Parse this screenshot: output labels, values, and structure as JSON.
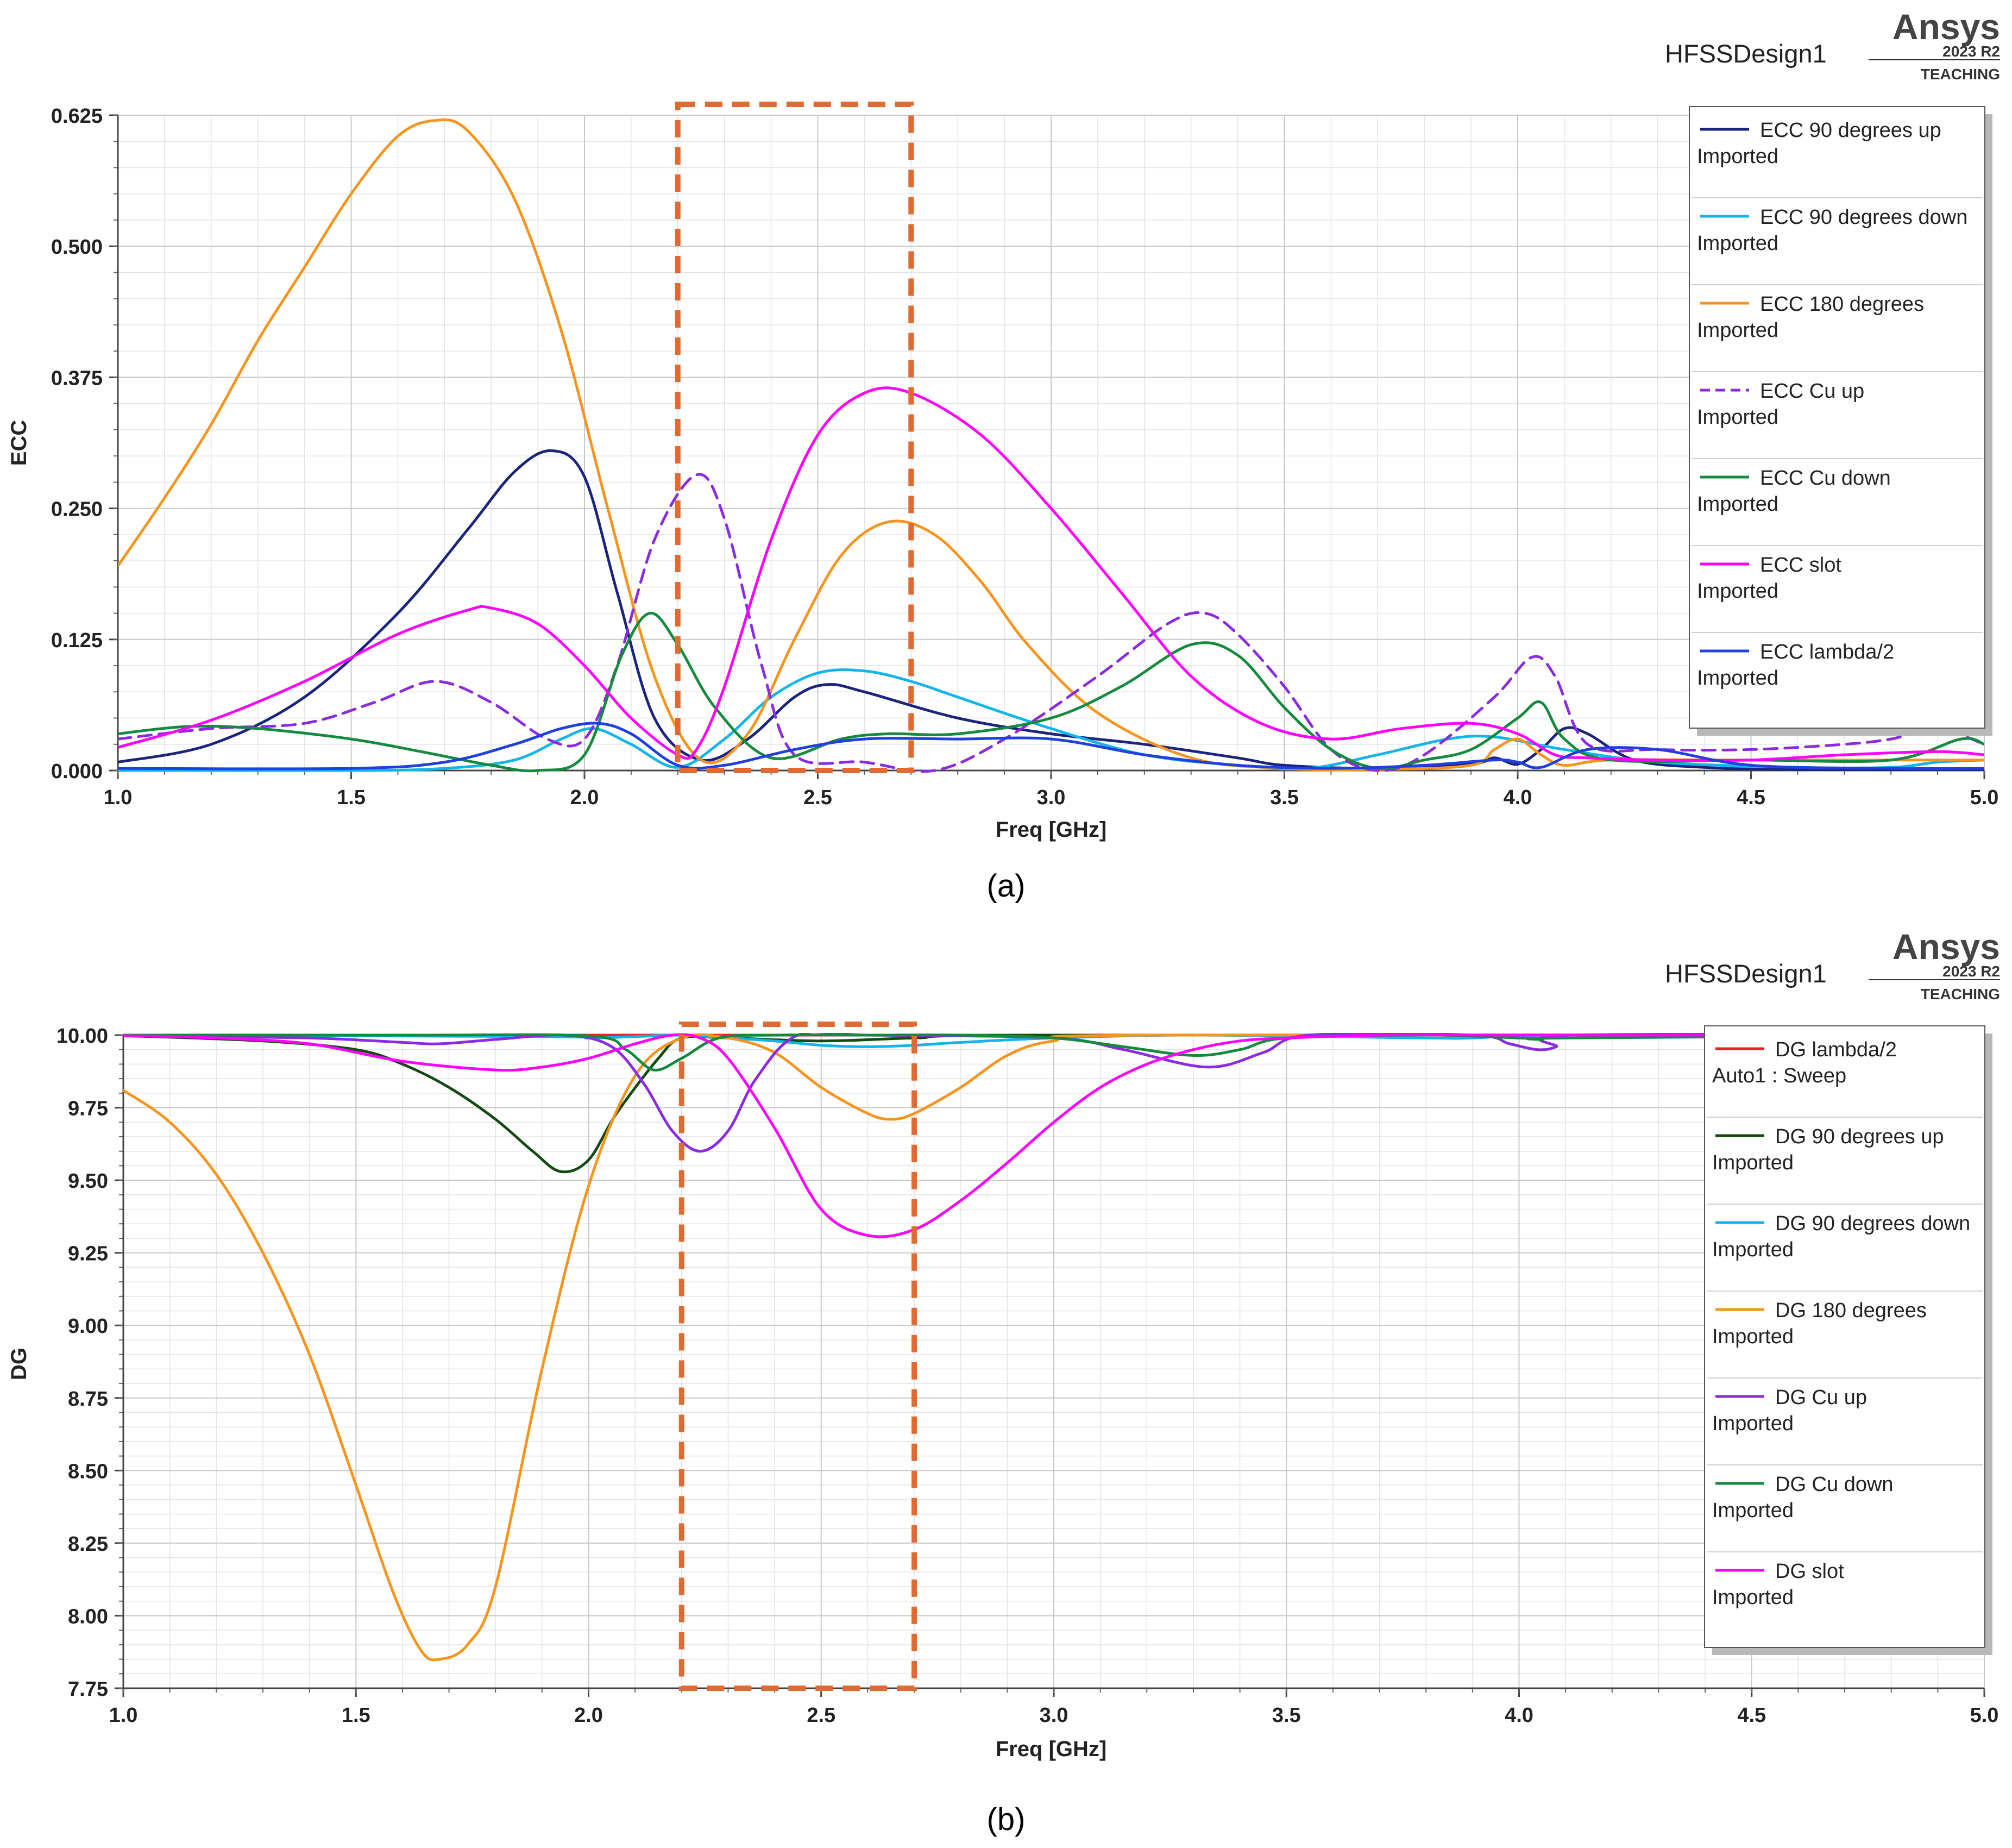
{
  "colors": {
    "navy": "#1a237e",
    "cyan": "#12b5ea",
    "orange": "#f7941d",
    "purple": "#8a2be2",
    "green": "#138a3c",
    "magenta": "#ff00ff",
    "blue": "#1f3fe0",
    "red": "#e8202a",
    "darkgreen": "#124a12",
    "highlight": "#e2692f"
  },
  "chart_data": [
    {
      "type": "line",
      "panel_label": "(a)",
      "design_name": "HFSSDesign1",
      "brand": "Ansys",
      "brand_version": "2023 R2",
      "brand_edition": "TEACHING",
      "xlabel": "Freq [GHz]",
      "ylabel": "ECC",
      "xlim": [
        1.0,
        5.0
      ],
      "ylim": [
        0.0,
        0.625
      ],
      "x_ticks": [
        "1.0",
        "1.5",
        "2.0",
        "2.5",
        "3.0",
        "3.5",
        "4.0",
        "4.5",
        "5.0"
      ],
      "y_ticks": [
        "0.000",
        "0.125",
        "0.250",
        "0.375",
        "0.500",
        "0.625"
      ],
      "highlight_band": [
        2.2,
        2.7
      ],
      "series": [
        {
          "name": "ECC 90 degrees  up",
          "source": "Imported",
          "color": "#1a237e",
          "dash": false,
          "x": [
            1.0,
            1.2,
            1.4,
            1.6,
            1.75,
            1.85,
            1.93,
            2.0,
            2.07,
            2.15,
            2.25,
            2.35,
            2.45,
            2.52,
            2.6,
            2.8,
            3.0,
            3.2,
            3.4,
            3.5,
            3.7,
            3.9,
            3.95,
            4.0,
            4.05,
            4.1,
            4.15,
            4.25,
            4.4,
            4.6,
            5.0
          ],
          "y": [
            0.008,
            0.025,
            0.07,
            0.15,
            0.23,
            0.285,
            0.305,
            0.28,
            0.17,
            0.05,
            0.01,
            0.03,
            0.07,
            0.082,
            0.075,
            0.05,
            0.035,
            0.025,
            0.012,
            0.005,
            0.002,
            0.006,
            0.012,
            0.006,
            0.02,
            0.04,
            0.035,
            0.01,
            0.003,
            0.001,
            0.001
          ]
        },
        {
          "name": "ECC 90 degrees down",
          "source": "Imported",
          "color": "#12b5ea",
          "dash": false,
          "x": [
            1.0,
            1.5,
            1.7,
            1.85,
            1.95,
            2.02,
            2.1,
            2.2,
            2.3,
            2.4,
            2.5,
            2.6,
            2.7,
            2.8,
            3.0,
            3.2,
            3.4,
            3.55,
            3.7,
            3.85,
            3.95,
            4.1,
            4.3,
            4.6,
            4.8,
            4.9,
            5.0
          ],
          "y": [
            0.0,
            0.0,
            0.002,
            0.01,
            0.03,
            0.04,
            0.025,
            0.003,
            0.03,
            0.07,
            0.093,
            0.095,
            0.085,
            0.07,
            0.04,
            0.015,
            0.005,
            0.002,
            0.015,
            0.03,
            0.032,
            0.02,
            0.008,
            0.003,
            0.003,
            0.008,
            0.01
          ]
        },
        {
          "name": "ECC 180 degrees",
          "source": "Imported",
          "color": "#f7941d",
          "dash": false,
          "x": [
            1.0,
            1.1,
            1.2,
            1.3,
            1.4,
            1.5,
            1.6,
            1.68,
            1.75,
            1.85,
            1.95,
            2.05,
            2.15,
            2.25,
            2.35,
            2.45,
            2.55,
            2.65,
            2.75,
            2.85,
            2.95,
            3.1,
            3.3,
            3.5,
            3.7,
            3.9,
            3.95,
            4.0,
            4.05,
            4.1,
            4.2,
            4.5,
            5.0
          ],
          "y": [
            0.195,
            0.26,
            0.33,
            0.41,
            0.48,
            0.55,
            0.605,
            0.62,
            0.61,
            0.545,
            0.42,
            0.25,
            0.09,
            0.01,
            0.035,
            0.125,
            0.205,
            0.237,
            0.225,
            0.18,
            0.12,
            0.055,
            0.012,
            0.002,
            0.001,
            0.005,
            0.02,
            0.03,
            0.015,
            0.005,
            0.01,
            0.01,
            0.01
          ]
        },
        {
          "name": "ECC Cu up",
          "source": "Imported",
          "color": "#8a2be2",
          "dash": true,
          "x": [
            1.0,
            1.2,
            1.4,
            1.55,
            1.68,
            1.8,
            1.92,
            2.0,
            2.07,
            2.15,
            2.24,
            2.3,
            2.38,
            2.45,
            2.6,
            2.75,
            2.9,
            3.1,
            3.25,
            3.33,
            3.4,
            3.5,
            3.6,
            3.7,
            3.8,
            3.95,
            4.03,
            4.08,
            4.15,
            4.3,
            4.5,
            4.7,
            4.8,
            4.9,
            5.0
          ],
          "y": [
            0.03,
            0.04,
            0.045,
            0.065,
            0.085,
            0.065,
            0.03,
            0.03,
            0.1,
            0.22,
            0.282,
            0.24,
            0.1,
            0.015,
            0.008,
            0.0,
            0.03,
            0.09,
            0.14,
            0.15,
            0.13,
            0.08,
            0.02,
            0.0,
            0.015,
            0.07,
            0.108,
            0.09,
            0.025,
            0.02,
            0.02,
            0.025,
            0.03,
            0.04,
            0.025
          ]
        },
        {
          "name": "ECC Cu down",
          "source": "Imported",
          "color": "#138a3c",
          "dash": false,
          "x": [
            1.0,
            1.15,
            1.3,
            1.5,
            1.65,
            1.8,
            1.9,
            2.0,
            2.08,
            2.14,
            2.2,
            2.28,
            2.4,
            2.55,
            2.65,
            2.8,
            3.0,
            3.15,
            3.3,
            3.4,
            3.5,
            3.6,
            3.7,
            3.8,
            3.9,
            4.0,
            4.05,
            4.1,
            4.2,
            4.5,
            4.8,
            4.95,
            5.0
          ],
          "y": [
            0.035,
            0.042,
            0.04,
            0.03,
            0.018,
            0.005,
            0.0,
            0.015,
            0.11,
            0.15,
            0.12,
            0.06,
            0.012,
            0.03,
            0.035,
            0.035,
            0.05,
            0.08,
            0.12,
            0.11,
            0.06,
            0.02,
            0.002,
            0.01,
            0.02,
            0.05,
            0.065,
            0.03,
            0.01,
            0.01,
            0.01,
            0.03,
            0.025
          ]
        },
        {
          "name": "ECC slot",
          "source": "Imported",
          "color": "#ff00ff",
          "dash": false,
          "x": [
            1.0,
            1.2,
            1.4,
            1.6,
            1.75,
            1.8,
            1.9,
            2.0,
            2.1,
            2.2,
            2.24,
            2.3,
            2.4,
            2.5,
            2.6,
            2.7,
            2.85,
            3.0,
            3.15,
            3.3,
            3.45,
            3.6,
            3.75,
            3.9,
            4.0,
            4.08,
            4.15,
            4.3,
            4.5,
            4.7,
            4.9,
            5.0
          ],
          "y": [
            0.022,
            0.048,
            0.085,
            0.13,
            0.153,
            0.155,
            0.14,
            0.1,
            0.05,
            0.015,
            0.02,
            0.08,
            0.22,
            0.32,
            0.36,
            0.36,
            0.32,
            0.25,
            0.17,
            0.09,
            0.045,
            0.03,
            0.04,
            0.045,
            0.035,
            0.015,
            0.012,
            0.01,
            0.01,
            0.015,
            0.018,
            0.015
          ]
        },
        {
          "name": "ECC lambda/2",
          "source": "Imported",
          "color": "#1f3fe0",
          "dash": false,
          "x": [
            1.0,
            1.5,
            1.7,
            1.85,
            1.95,
            2.03,
            2.1,
            2.2,
            2.3,
            2.45,
            2.6,
            2.8,
            3.0,
            3.2,
            3.4,
            3.6,
            3.8,
            3.95,
            4.0,
            4.05,
            4.15,
            4.3,
            4.5,
            4.8,
            5.0
          ],
          "y": [
            0.002,
            0.002,
            0.008,
            0.025,
            0.04,
            0.045,
            0.035,
            0.005,
            0.005,
            0.02,
            0.03,
            0.03,
            0.03,
            0.015,
            0.005,
            0.002,
            0.005,
            0.01,
            0.008,
            0.003,
            0.02,
            0.02,
            0.005,
            0.002,
            0.002
          ]
        }
      ]
    },
    {
      "type": "line",
      "panel_label": "(b)",
      "design_name": "HFSSDesign1",
      "brand": "Ansys",
      "brand_version": "2023 R2",
      "brand_edition": "TEACHING",
      "xlabel": "Freq [GHz]",
      "ylabel": "DG",
      "xlim": [
        1.0,
        5.0
      ],
      "ylim": [
        7.75,
        10.0
      ],
      "x_ticks": [
        "1.0",
        "1.5",
        "2.0",
        "2.5",
        "3.0",
        "3.5",
        "4.0",
        "4.5",
        "5.0"
      ],
      "y_ticks": [
        "7.75",
        "8.00",
        "8.25",
        "8.50",
        "8.75",
        "9.00",
        "9.25",
        "9.50",
        "9.75",
        "10.00"
      ],
      "highlight_band": [
        2.2,
        2.7
      ],
      "series": [
        {
          "name": "DG lambda/2",
          "source": "Auto1 : Sweep",
          "color": "#e8202a",
          "dash": false,
          "x": [
            1.0,
            5.0
          ],
          "y": [
            10.0,
            10.0
          ]
        },
        {
          "name": "DG 90 degrees up",
          "source": "Imported",
          "color": "#124a12",
          "dash": false,
          "x": [
            1.0,
            1.3,
            1.5,
            1.6,
            1.7,
            1.8,
            1.88,
            1.94,
            2.0,
            2.06,
            2.15,
            2.2,
            2.3,
            2.5,
            2.7,
            3.0,
            5.0
          ],
          "y": [
            9.998,
            9.98,
            9.95,
            9.9,
            9.82,
            9.71,
            9.6,
            9.53,
            9.57,
            9.73,
            9.92,
            9.99,
            9.99,
            9.98,
            9.99,
            10.0,
            10.0
          ]
        },
        {
          "name": "DG 90 degrees down",
          "source": "Imported",
          "color": "#12b5ea",
          "dash": false,
          "x": [
            1.0,
            1.9,
            2.0,
            2.1,
            2.2,
            2.3,
            2.4,
            2.5,
            2.6,
            2.7,
            2.8,
            3.0,
            3.3,
            3.8,
            3.9,
            4.1,
            5.0
          ],
          "y": [
            10.0,
            9.995,
            9.99,
            9.995,
            10.0,
            9.99,
            9.98,
            9.965,
            9.96,
            9.965,
            9.975,
            9.99,
            10.0,
            9.99,
            9.99,
            10.0,
            10.0
          ]
        },
        {
          "name": "DG 180 degrees",
          "source": "Imported",
          "color": "#f7941d",
          "dash": false,
          "x": [
            1.0,
            1.1,
            1.2,
            1.3,
            1.4,
            1.5,
            1.58,
            1.64,
            1.68,
            1.74,
            1.8,
            1.9,
            2.0,
            2.1,
            2.2,
            2.3,
            2.4,
            2.5,
            2.6,
            2.65,
            2.7,
            2.8,
            2.9,
            3.0,
            3.2,
            5.0
          ],
          "y": [
            9.81,
            9.7,
            9.52,
            9.25,
            8.9,
            8.45,
            8.08,
            7.88,
            7.85,
            7.9,
            8.1,
            8.85,
            9.48,
            9.86,
            9.99,
            9.99,
            9.94,
            9.82,
            9.73,
            9.71,
            9.73,
            9.82,
            9.93,
            9.98,
            10.0,
            10.0
          ]
        },
        {
          "name": "DG Cu up",
          "source": "Imported",
          "color": "#8a2be2",
          "dash": false,
          "x": [
            1.0,
            1.4,
            1.6,
            1.68,
            1.8,
            1.95,
            2.05,
            2.12,
            2.18,
            2.24,
            2.3,
            2.36,
            2.45,
            2.6,
            3.0,
            3.15,
            3.33,
            3.45,
            3.55,
            3.9,
            3.98,
            4.04,
            4.08,
            4.12,
            5.0
          ],
          "y": [
            10.0,
            9.99,
            9.975,
            9.97,
            9.985,
            10.0,
            9.96,
            9.83,
            9.67,
            9.6,
            9.67,
            9.85,
            10.0,
            10.0,
            9.99,
            9.95,
            9.89,
            9.94,
            10.0,
            10.0,
            9.97,
            9.95,
            9.96,
            10.0,
            10.0
          ]
        },
        {
          "name": "DG Cu down",
          "source": "Imported",
          "color": "#138a3c",
          "dash": false,
          "x": [
            1.0,
            1.6,
            2.0,
            2.08,
            2.14,
            2.2,
            2.28,
            2.4,
            2.6,
            2.8,
            3.0,
            3.15,
            3.3,
            3.4,
            3.5,
            3.8,
            4.0,
            4.05,
            4.1,
            5.0
          ],
          "y": [
            10.0,
            10.0,
            9.997,
            9.95,
            9.88,
            9.92,
            9.99,
            10.0,
            10.0,
            10.0,
            9.99,
            9.96,
            9.93,
            9.95,
            9.99,
            10.0,
            9.99,
            9.985,
            9.99,
            10.0
          ]
        },
        {
          "name": "DG slot",
          "source": "Imported",
          "color": "#ff00ff",
          "dash": false,
          "x": [
            1.0,
            1.2,
            1.4,
            1.6,
            1.8,
            1.9,
            2.0,
            2.1,
            2.18,
            2.24,
            2.3,
            2.4,
            2.5,
            2.6,
            2.7,
            2.8,
            2.9,
            3.0,
            3.1,
            3.2,
            3.3,
            3.4,
            3.5,
            3.7,
            4.0,
            5.0
          ],
          "y": [
            9.998,
            9.99,
            9.97,
            9.91,
            9.88,
            9.89,
            9.92,
            9.97,
            10.0,
            9.99,
            9.92,
            9.68,
            9.4,
            9.31,
            9.33,
            9.43,
            9.56,
            9.7,
            9.82,
            9.9,
            9.95,
            9.98,
            9.99,
            10.0,
            10.0,
            10.0
          ]
        }
      ]
    }
  ]
}
